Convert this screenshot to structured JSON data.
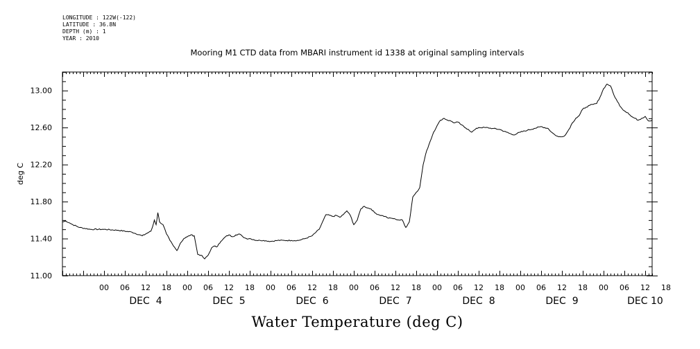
{
  "header": {
    "longitude": "LONGITUDE : 122W(-122)",
    "latitude": "LATITUDE : 36.8N",
    "depth": "DEPTH (m) : 1",
    "year": "YEAR : 2010"
  },
  "chart_data": {
    "type": "line",
    "title": "Mooring M1 CTD data from MBARI instrument id 1338 at original sampling intervals",
    "xlabel": "Water Temperature (deg C)",
    "ylabel": "deg C",
    "ylim": [
      11.0,
      13.2
    ],
    "yticks": [
      "11.00",
      "11.40",
      "11.80",
      "12.20",
      "12.60",
      "13.00"
    ],
    "x_unit": "hours since DEC 3 12:00",
    "xlim": [
      0,
      170
    ],
    "hour_ticks": [
      "00",
      "06",
      "12",
      "18",
      "00",
      "06",
      "12",
      "18",
      "00",
      "06",
      "12",
      "18",
      "00",
      "06",
      "12",
      "18",
      "00",
      "06",
      "12",
      "18",
      "00",
      "06",
      "12",
      "18",
      "00",
      "06",
      "12",
      "18"
    ],
    "day_labels": [
      "DEC  4",
      "DEC  5",
      "DEC  6",
      "DEC  7",
      "DEC  8",
      "DEC  9",
      "DEC 10"
    ],
    "grid": false,
    "series": [
      {
        "color": "#000000",
        "x": [
          0,
          1,
          2,
          3,
          5,
          8,
          12,
          16,
          20,
          23,
          24.5,
          25.5,
          26,
          26.5,
          27,
          27.5,
          28,
          29,
          30,
          31,
          32,
          33,
          34,
          35,
          36,
          37,
          38,
          39,
          40,
          40.5,
          41,
          42,
          43,
          44,
          44.5,
          45,
          46,
          47,
          48,
          49,
          50,
          51,
          52,
          53,
          54,
          55,
          56,
          57,
          58,
          60,
          62,
          64,
          66,
          68,
          70,
          72,
          74,
          76,
          78,
          79,
          80,
          81,
          82,
          83,
          84,
          85,
          86,
          87,
          88,
          89,
          90,
          91,
          92,
          93,
          94,
          95,
          96,
          97,
          98,
          99,
          100,
          101,
          102,
          103,
          104,
          105,
          106,
          107,
          108,
          109,
          110,
          111,
          112,
          113,
          114,
          115,
          116,
          117,
          118,
          119,
          120,
          122,
          124,
          126,
          128,
          130,
          132,
          134,
          136,
          138,
          140,
          141,
          142,
          143,
          144,
          145,
          146,
          147,
          148,
          149,
          150,
          151,
          152,
          153,
          154,
          155,
          156,
          157,
          158,
          159,
          160,
          161,
          162,
          163,
          164,
          165,
          166,
          167,
          168,
          169,
          170
        ],
        "y": [
          11.58,
          11.59,
          11.57,
          11.55,
          11.52,
          11.5,
          11.5,
          11.49,
          11.47,
          11.43,
          11.46,
          11.48,
          11.53,
          11.6,
          11.55,
          11.68,
          11.58,
          11.55,
          11.45,
          11.38,
          11.32,
          11.27,
          11.35,
          11.4,
          11.42,
          11.44,
          11.43,
          11.23,
          11.22,
          11.2,
          11.18,
          11.22,
          11.3,
          11.32,
          11.31,
          11.34,
          11.38,
          11.42,
          11.44,
          11.42,
          11.44,
          11.45,
          11.42,
          11.4,
          11.4,
          11.39,
          11.38,
          11.38,
          11.38,
          11.37,
          11.38,
          11.38,
          11.38,
          11.38,
          11.4,
          11.43,
          11.5,
          11.66,
          11.64,
          11.65,
          11.63,
          11.66,
          11.7,
          11.65,
          11.55,
          11.6,
          11.72,
          11.75,
          11.73,
          11.72,
          11.68,
          11.66,
          11.65,
          11.64,
          11.62,
          11.62,
          11.61,
          11.6,
          11.6,
          11.52,
          11.58,
          11.85,
          11.9,
          11.95,
          12.2,
          12.35,
          12.45,
          12.55,
          12.62,
          12.68,
          12.7,
          12.68,
          12.67,
          12.65,
          12.66,
          12.63,
          12.6,
          12.58,
          12.55,
          12.58,
          12.6,
          12.6,
          12.59,
          12.58,
          12.55,
          12.52,
          12.55,
          12.57,
          12.59,
          12.61,
          12.59,
          12.55,
          12.52,
          12.5,
          12.5,
          12.52,
          12.58,
          12.65,
          12.7,
          12.73,
          12.8,
          12.82,
          12.84,
          12.85,
          12.86,
          12.93,
          13.02,
          13.07,
          13.05,
          12.95,
          12.88,
          12.82,
          12.78,
          12.76,
          12.72,
          12.7,
          12.68,
          12.7,
          12.72,
          12.67,
          12.68
        ]
      }
    ]
  }
}
